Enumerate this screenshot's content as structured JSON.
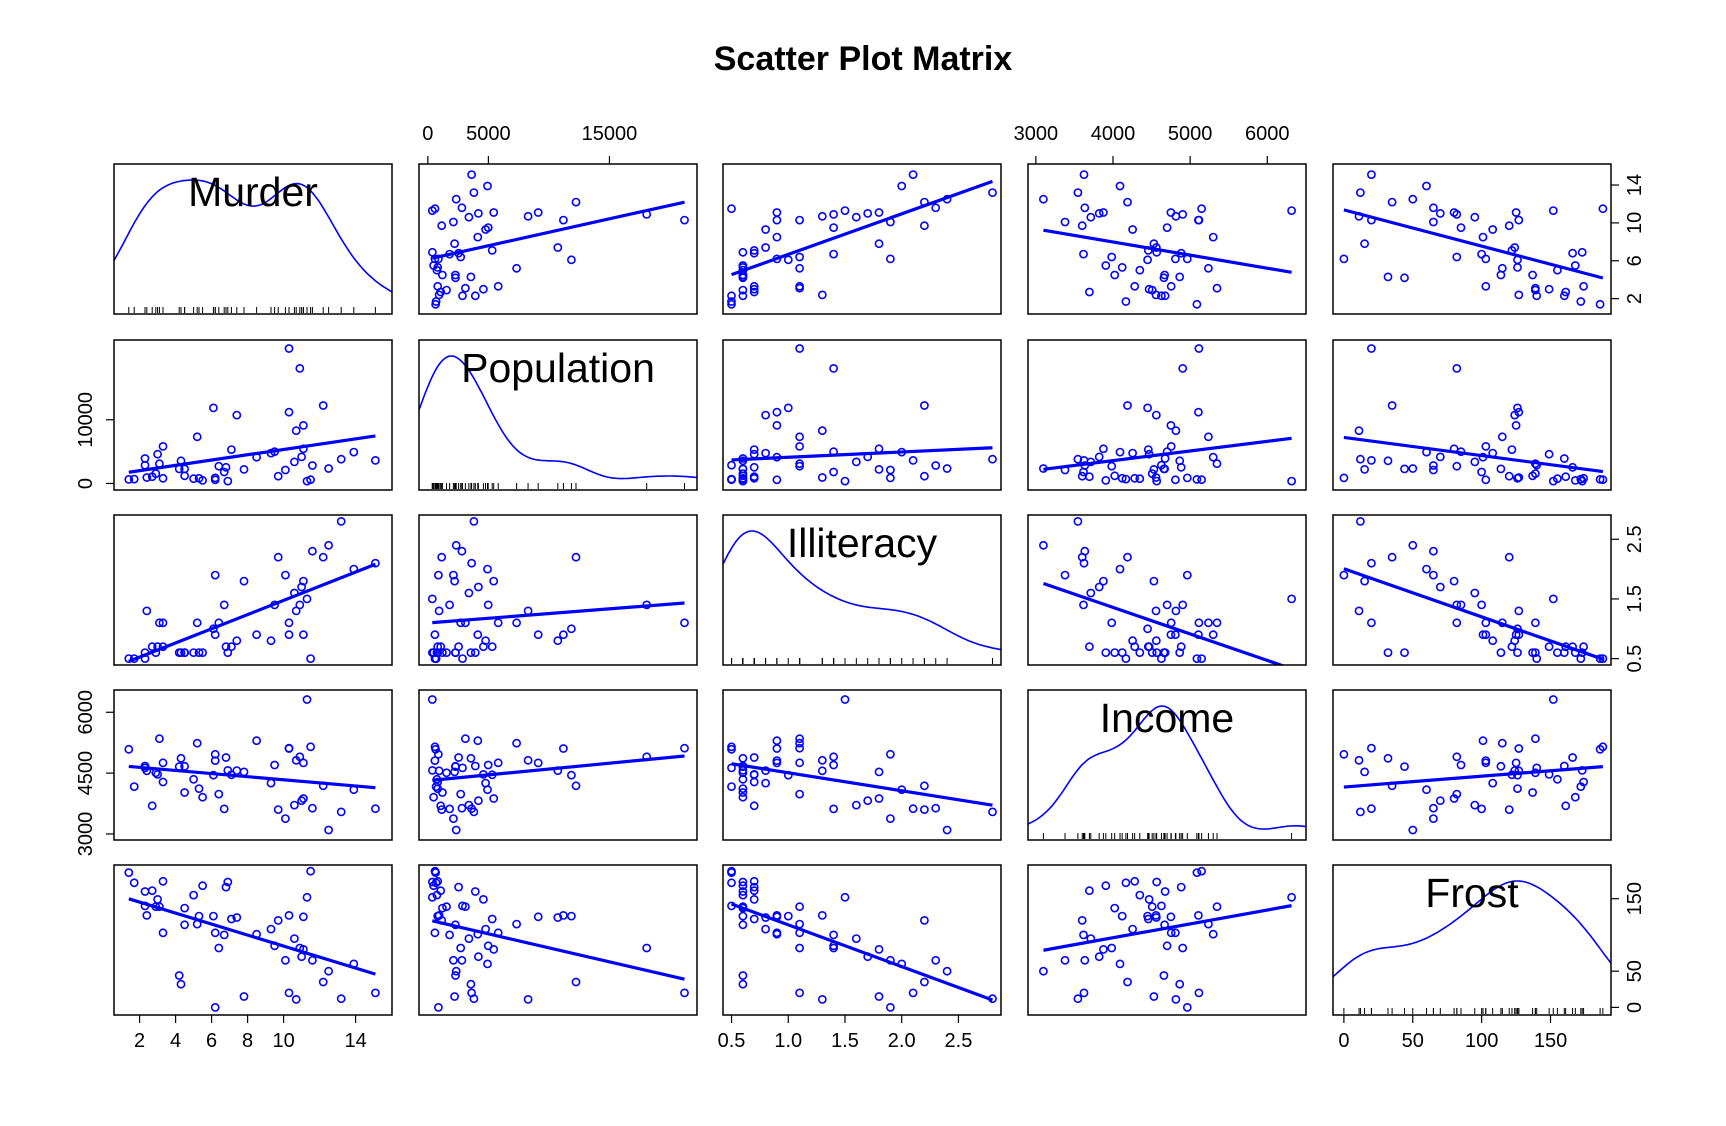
{
  "chart_data": {
    "type": "scatter",
    "title": "Scatter Plot Matrix",
    "variables": [
      {
        "name": "Murder",
        "range": [
          0.8,
          15.8
        ],
        "ticks": [
          2,
          4,
          6,
          8,
          10,
          14
        ],
        "rticks": [
          2,
          6,
          10,
          14
        ]
      },
      {
        "name": "Population",
        "range": [
          -400,
          21900
        ],
        "ticks": [
          0,
          5000,
          15000
        ],
        "rticks": [
          0,
          10000
        ]
      },
      {
        "name": "Illiteracy",
        "range": [
          0.46,
          2.84
        ],
        "ticks": [
          0.5,
          1.0,
          1.5,
          2.0,
          2.5
        ],
        "tick_labels": [
          "0.5",
          "1.0",
          "1.5",
          "2.0",
          "2.5"
        ],
        "rticks": [
          0.5,
          1.5,
          2.5
        ]
      },
      {
        "name": "Income",
        "range": [
          2950,
          6450
        ],
        "ticks": [
          3000,
          4000,
          5000,
          6000
        ],
        "rticks": [
          3000,
          4500,
          6000
        ]
      },
      {
        "name": "Frost",
        "range": [
          -5,
          191
        ],
        "ticks": [
          0,
          50,
          100,
          150
        ],
        "rticks": [
          0,
          50,
          150
        ]
      }
    ],
    "records": [
      [
        15.1,
        3615,
        2.1,
        3624,
        20
      ],
      [
        11.3,
        365,
        1.5,
        6315,
        152
      ],
      [
        7.8,
        2212,
        1.8,
        4530,
        15
      ],
      [
        10.1,
        2110,
        1.9,
        3378,
        65
      ],
      [
        10.3,
        21198,
        1.1,
        5114,
        20
      ],
      [
        6.8,
        2541,
        0.7,
        4884,
        166
      ],
      [
        3.1,
        3100,
        1.1,
        5348,
        139
      ],
      [
        6.2,
        579,
        0.9,
        4809,
        103
      ],
      [
        10.7,
        8277,
        1.3,
        4815,
        11
      ],
      [
        13.9,
        4931,
        2.0,
        4091,
        60
      ],
      [
        6.2,
        868,
        1.9,
        4963,
        0
      ],
      [
        5.3,
        813,
        0.6,
        4119,
        126
      ],
      [
        10.3,
        11197,
        0.9,
        5107,
        127
      ],
      [
        7.1,
        5313,
        0.7,
        4458,
        122
      ],
      [
        2.3,
        2861,
        0.5,
        4628,
        140
      ],
      [
        4.5,
        2280,
        0.6,
        4669,
        114
      ],
      [
        10.6,
        3387,
        1.6,
        3712,
        95
      ],
      [
        13.2,
        3806,
        2.8,
        3545,
        12
      ],
      [
        2.7,
        1058,
        0.7,
        3694,
        161
      ],
      [
        8.5,
        4122,
        0.9,
        5299,
        101
      ],
      [
        3.3,
        5814,
        1.1,
        4755,
        103
      ],
      [
        11.1,
        9111,
        0.9,
        4751,
        125
      ],
      [
        2.3,
        3921,
        0.6,
        4675,
        160
      ],
      [
        12.5,
        2341,
        2.4,
        3098,
        50
      ],
      [
        9.3,
        4767,
        0.8,
        4254,
        108
      ],
      [
        5.0,
        746,
        0.6,
        4347,
        155
      ],
      [
        2.9,
        1544,
        0.6,
        4508,
        139
      ],
      [
        11.5,
        590,
        0.5,
        5149,
        188
      ],
      [
        3.3,
        812,
        0.7,
        4281,
        174
      ],
      [
        5.2,
        7333,
        1.1,
        5237,
        115
      ],
      [
        9.7,
        1144,
        2.2,
        3601,
        120
      ],
      [
        10.9,
        18076,
        1.4,
        4903,
        82
      ],
      [
        11.1,
        5441,
        1.8,
        3875,
        80
      ],
      [
        1.4,
        637,
        0.5,
        5087,
        186
      ],
      [
        7.4,
        10735,
        0.8,
        4561,
        124
      ],
      [
        6.4,
        2715,
        1.1,
        3983,
        82
      ],
      [
        4.2,
        2284,
        0.6,
        4660,
        44
      ],
      [
        6.1,
        11860,
        1.0,
        4449,
        126
      ],
      [
        2.4,
        931,
        1.3,
        4558,
        127
      ],
      [
        11.6,
        2816,
        2.3,
        3635,
        65
      ],
      [
        1.7,
        681,
        0.5,
        4167,
        172
      ],
      [
        11.0,
        4173,
        1.7,
        3821,
        70
      ],
      [
        12.2,
        12237,
        2.2,
        4188,
        35
      ],
      [
        4.5,
        1203,
        0.6,
        4022,
        137
      ],
      [
        5.5,
        472,
        0.6,
        3907,
        168
      ],
      [
        9.5,
        4981,
        1.4,
        4701,
        85
      ],
      [
        4.3,
        3559,
        0.6,
        4864,
        32
      ],
      [
        6.7,
        1799,
        1.4,
        3617,
        100
      ],
      [
        3.0,
        4589,
        0.7,
        4468,
        149
      ],
      [
        6.9,
        376,
        0.6,
        4566,
        173
      ]
    ]
  }
}
